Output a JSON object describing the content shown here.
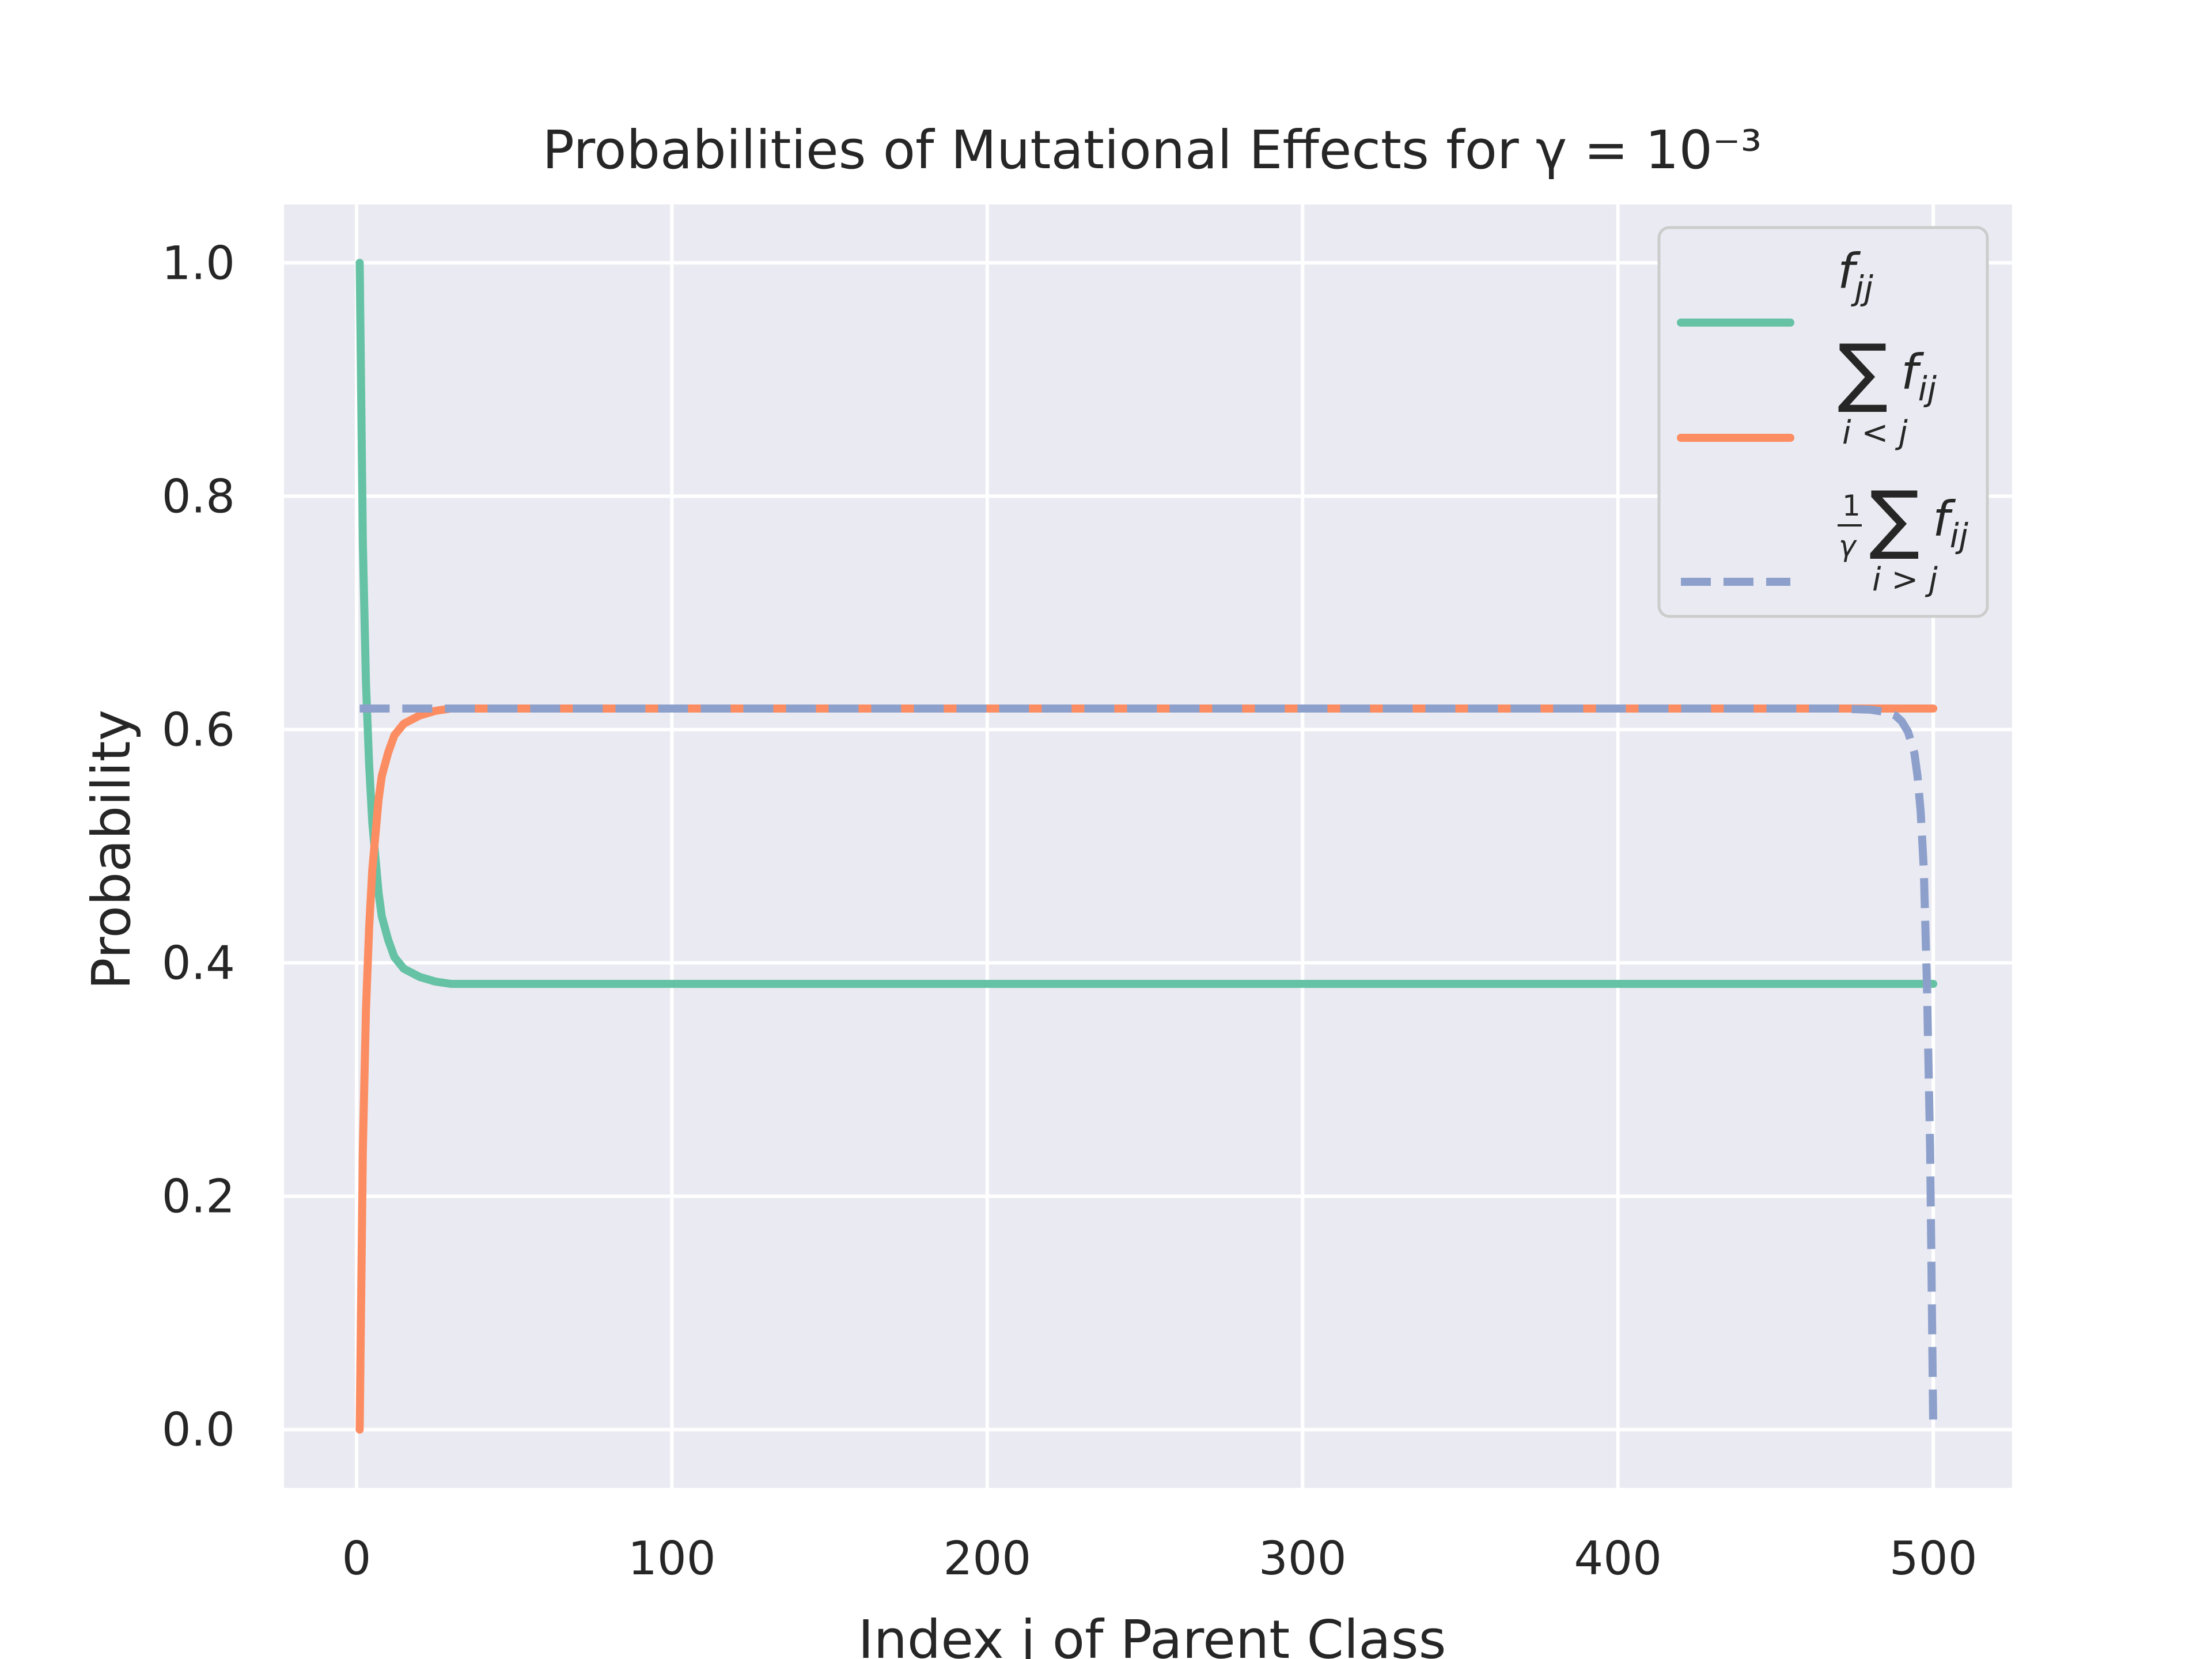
{
  "chart_data": {
    "type": "line",
    "title": "Probabilities of Mutational Effects for γ = 10⁻³",
    "xlabel": "Index j of Parent Class",
    "ylabel": "Probability",
    "xlim": [
      -23,
      525
    ],
    "ylim": [
      -0.05,
      1.05
    ],
    "xticks": [
      0,
      100,
      200,
      300,
      400,
      500
    ],
    "yticks": [
      0.0,
      0.2,
      0.4,
      0.6,
      0.8,
      1.0
    ],
    "grid": true,
    "legend_position": "top-right",
    "series": [
      {
        "name": "f_jj",
        "color": "#66c2a5",
        "dash": "solid",
        "points": [
          [
            1,
            1.0
          ],
          [
            2,
            0.76
          ],
          [
            3,
            0.64
          ],
          [
            4,
            0.57
          ],
          [
            5,
            0.52
          ],
          [
            6,
            0.49
          ],
          [
            7,
            0.46
          ],
          [
            8,
            0.44
          ],
          [
            10,
            0.42
          ],
          [
            12,
            0.405
          ],
          [
            15,
            0.395
          ],
          [
            20,
            0.388
          ],
          [
            25,
            0.384
          ],
          [
            30,
            0.382
          ],
          [
            40,
            0.382
          ],
          [
            100,
            0.382
          ],
          [
            200,
            0.382
          ],
          [
            300,
            0.382
          ],
          [
            400,
            0.382
          ],
          [
            500,
            0.382
          ]
        ]
      },
      {
        "name": "Σ_{i<j} f_ij",
        "color": "#fc8d62",
        "dash": "solid",
        "points": [
          [
            1,
            0.0
          ],
          [
            2,
            0.24
          ],
          [
            3,
            0.36
          ],
          [
            4,
            0.43
          ],
          [
            5,
            0.48
          ],
          [
            6,
            0.51
          ],
          [
            7,
            0.54
          ],
          [
            8,
            0.56
          ],
          [
            10,
            0.58
          ],
          [
            12,
            0.595
          ],
          [
            15,
            0.605
          ],
          [
            20,
            0.612
          ],
          [
            25,
            0.616
          ],
          [
            30,
            0.618
          ],
          [
            40,
            0.618
          ],
          [
            100,
            0.618
          ],
          [
            200,
            0.618
          ],
          [
            300,
            0.618
          ],
          [
            400,
            0.618
          ],
          [
            500,
            0.618
          ]
        ]
      },
      {
        "name": "(1/γ) Σ_{i>j} f_ij",
        "color": "#8da0cb",
        "dash": "dashed",
        "points": [
          [
            1,
            0.618
          ],
          [
            100,
            0.618
          ],
          [
            200,
            0.618
          ],
          [
            300,
            0.618
          ],
          [
            400,
            0.618
          ],
          [
            470,
            0.618
          ],
          [
            480,
            0.617
          ],
          [
            485,
            0.615
          ],
          [
            488,
            0.612
          ],
          [
            490,
            0.607
          ],
          [
            492,
            0.598
          ],
          [
            494,
            0.58
          ],
          [
            495,
            0.56
          ],
          [
            496,
            0.53
          ],
          [
            497,
            0.48
          ],
          [
            498,
            0.38
          ],
          [
            499,
            0.24
          ],
          [
            500,
            0.0
          ]
        ]
      }
    ]
  }
}
